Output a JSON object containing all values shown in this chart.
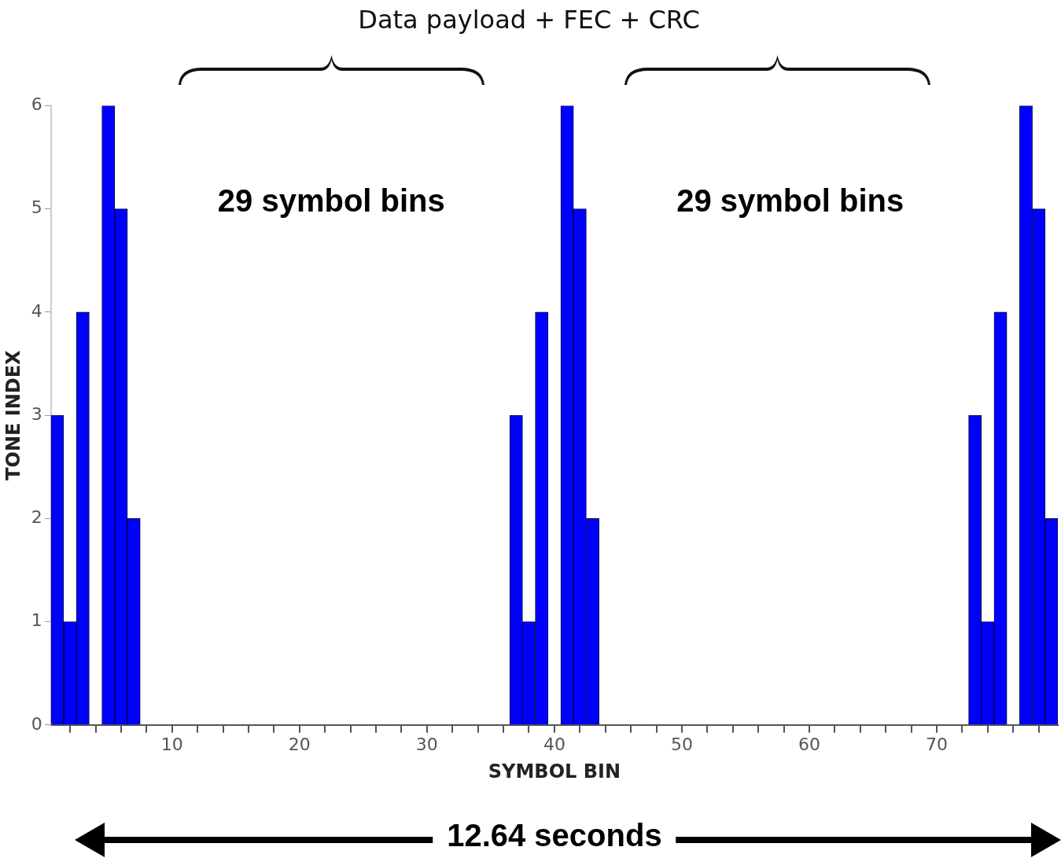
{
  "chart_data": {
    "type": "bar",
    "title": "Data payload + FEC + CRC",
    "xlabel": "SYMBOL BIN",
    "ylabel": "TONE INDEX",
    "color": "#0000ff",
    "x": [
      1,
      2,
      3,
      4,
      5,
      6,
      7,
      37,
      38,
      39,
      40,
      41,
      42,
      43,
      73,
      74,
      75,
      76,
      77,
      78,
      79
    ],
    "values": [
      3,
      1,
      4,
      0,
      6,
      5,
      2,
      3,
      1,
      4,
      0,
      6,
      5,
      2,
      3,
      1,
      4,
      0,
      6,
      5,
      2
    ],
    "xlim": [
      0.5,
      79.5
    ],
    "xticks": [
      {
        "value": 2,
        "label": null
      },
      {
        "value": 4,
        "label": null
      },
      {
        "value": 6,
        "label": null
      },
      {
        "value": 8,
        "label": null
      },
      10,
      {
        "value": 12,
        "label": null
      },
      {
        "value": 14,
        "label": null
      },
      {
        "value": 16,
        "label": null
      },
      {
        "value": 18,
        "label": null
      },
      20,
      {
        "value": 22,
        "label": null
      },
      {
        "value": 24,
        "label": null
      },
      {
        "value": 26,
        "label": null
      },
      {
        "value": 28,
        "label": null
      },
      30,
      {
        "value": 32,
        "label": null
      },
      {
        "value": 34,
        "label": null
      },
      {
        "value": 36,
        "label": null
      },
      {
        "value": 38,
        "label": null
      },
      40,
      {
        "value": 42,
        "label": null
      },
      {
        "value": 44,
        "label": null
      },
      {
        "value": 46,
        "label": null
      },
      {
        "value": 48,
        "label": null
      },
      50,
      {
        "value": 52,
        "label": null
      },
      {
        "value": 54,
        "label": null
      },
      {
        "value": 56,
        "label": null
      },
      {
        "value": 58,
        "label": null
      },
      60,
      {
        "value": 62,
        "label": null
      },
      {
        "value": 64,
        "label": null
      },
      {
        "value": 66,
        "label": null
      },
      {
        "value": 68,
        "label": null
      },
      70,
      {
        "value": 72,
        "label": null
      },
      {
        "value": 74,
        "label": null
      },
      {
        "value": 76,
        "label": null
      },
      {
        "value": 78,
        "label": null
      }
    ],
    "ylim": [
      0,
      6
    ],
    "yticks": [
      0,
      1,
      2,
      3,
      4,
      5,
      6
    ],
    "annotations": [
      "29 symbol bins",
      "29 symbol bins",
      "12.64 seconds"
    ]
  }
}
